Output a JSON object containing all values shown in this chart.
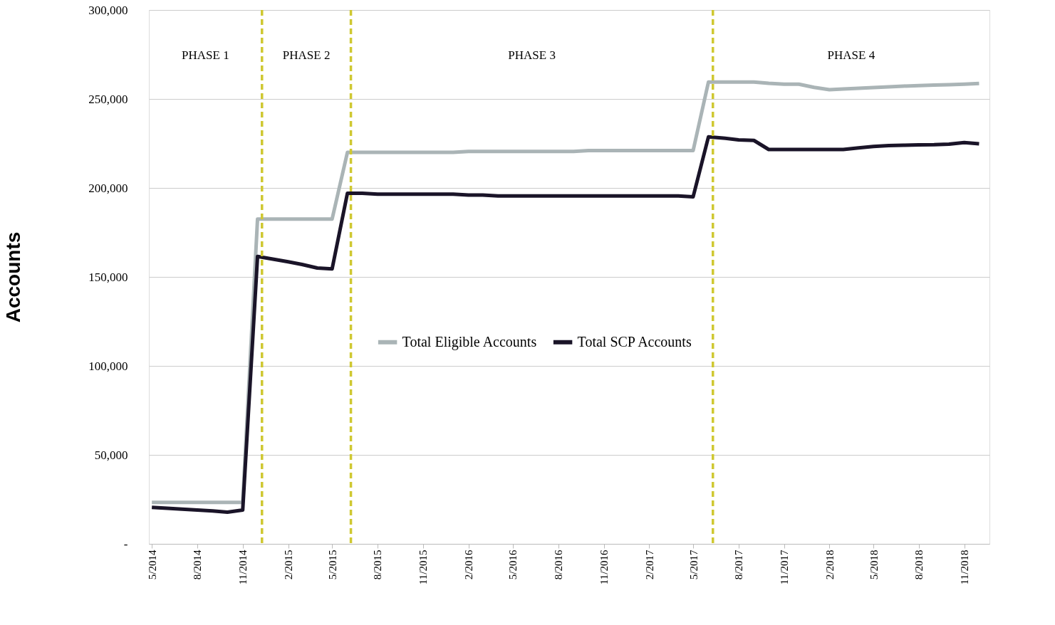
{
  "chart_data": {
    "type": "line",
    "ylabel": "Accounts",
    "x": [
      "2014-05",
      "2014-06",
      "2014-07",
      "2014-08",
      "2014-09",
      "2014-10",
      "2014-11",
      "2014-12",
      "2015-01",
      "2015-02",
      "2015-03",
      "2015-04",
      "2015-05",
      "2015-06",
      "2015-07",
      "2015-08",
      "2015-09",
      "2015-10",
      "2015-11",
      "2015-12",
      "2016-01",
      "2016-02",
      "2016-03",
      "2016-04",
      "2016-05",
      "2016-06",
      "2016-07",
      "2016-08",
      "2016-09",
      "2016-10",
      "2016-11",
      "2016-12",
      "2017-01",
      "2017-02",
      "2017-03",
      "2017-04",
      "2017-05",
      "2017-06",
      "2017-07",
      "2017-08",
      "2017-09",
      "2017-10",
      "2017-11",
      "2017-12",
      "2018-01",
      "2018-02",
      "2018-03",
      "2018-04",
      "2018-05",
      "2018-06",
      "2018-07",
      "2018-08",
      "2018-09",
      "2018-10",
      "2018-11",
      "2018-12"
    ],
    "series": [
      {
        "name": "Total Eligible Accounts",
        "color": "#aab4b6",
        "values": [
          23300,
          23300,
          23300,
          23300,
          23300,
          23300,
          23300,
          182500,
          182500,
          182500,
          182500,
          182500,
          182500,
          220000,
          220000,
          220000,
          220000,
          220000,
          220000,
          220000,
          220000,
          220500,
          220500,
          220500,
          220500,
          220500,
          220500,
          220500,
          220500,
          221000,
          221000,
          221000,
          221000,
          221000,
          221000,
          221000,
          221000,
          259500,
          259500,
          259500,
          259500,
          258800,
          258300,
          258300,
          256500,
          255200,
          255600,
          256000,
          256400,
          256800,
          257200,
          257500,
          257800,
          258000,
          258300,
          258700
        ]
      },
      {
        "name": "Total SCP Accounts",
        "color": "#1a1428",
        "values": [
          20500,
          20000,
          19500,
          19000,
          18500,
          17800,
          19000,
          161500,
          160000,
          158500,
          157000,
          155000,
          154500,
          197000,
          197000,
          196500,
          196500,
          196500,
          196500,
          196500,
          196500,
          196000,
          196000,
          195500,
          195500,
          195500,
          195500,
          195500,
          195500,
          195500,
          195500,
          195500,
          195500,
          195500,
          195500,
          195500,
          195000,
          228700,
          228000,
          227000,
          226700,
          221600,
          221600,
          221600,
          221600,
          221600,
          221600,
          222500,
          223300,
          223800,
          224000,
          224200,
          224300,
          224600,
          225500,
          224800
        ]
      }
    ],
    "xlim": [
      "2014-04-25",
      "2018-12-22"
    ],
    "xticks": [
      {
        "value": "2014-05",
        "label": "5/2014"
      },
      {
        "value": "2014-08",
        "label": "8/2014"
      },
      {
        "value": "2014-11",
        "label": "11/2014"
      },
      {
        "value": "2015-02",
        "label": "2/2015"
      },
      {
        "value": "2015-05",
        "label": "5/2015"
      },
      {
        "value": "2015-08",
        "label": "8/2015"
      },
      {
        "value": "2015-11",
        "label": "11/2015"
      },
      {
        "value": "2016-02",
        "label": "2/2016"
      },
      {
        "value": "2016-05",
        "label": "5/2016"
      },
      {
        "value": "2016-08",
        "label": "8/2016"
      },
      {
        "value": "2016-11",
        "label": "11/2016"
      },
      {
        "value": "2017-02",
        "label": "2/2017"
      },
      {
        "value": "2017-05",
        "label": "5/2017"
      },
      {
        "value": "2017-08",
        "label": "8/2017"
      },
      {
        "value": "2017-11",
        "label": "11/2017"
      },
      {
        "value": "2018-02",
        "label": "2/2018"
      },
      {
        "value": "2018-05",
        "label": "5/2018"
      },
      {
        "value": "2018-08",
        "label": "8/2018"
      },
      {
        "value": "2018-11",
        "label": "11/2018"
      }
    ],
    "ylim": [
      0,
      300000
    ],
    "yticks": [
      {
        "value": 0,
        "label": "-"
      },
      {
        "value": 50000,
        "label": "50,000"
      },
      {
        "value": 100000,
        "label": "100,000"
      },
      {
        "value": 150000,
        "label": "150,000"
      },
      {
        "value": 200000,
        "label": "200,000"
      },
      {
        "value": 250000,
        "label": "250,000"
      },
      {
        "value": 300000,
        "label": "300,000"
      }
    ],
    "ref_lines": [
      {
        "axis": "x",
        "value": "2014-12-10",
        "color": "#cfc832",
        "line_style": "dashed"
      },
      {
        "axis": "x",
        "value": "2015-06-08",
        "color": "#cfc832",
        "line_style": "dashed"
      },
      {
        "axis": "x",
        "value": "2017-06-10",
        "color": "#cfc832",
        "line_style": "dashed"
      }
    ],
    "annotations": [
      "PHASE 1",
      "PHASE 2",
      "PHASE 3",
      "PHASE 4"
    ],
    "grid": "y",
    "legend": "center",
    "marker": "none",
    "line_style": "solid"
  }
}
